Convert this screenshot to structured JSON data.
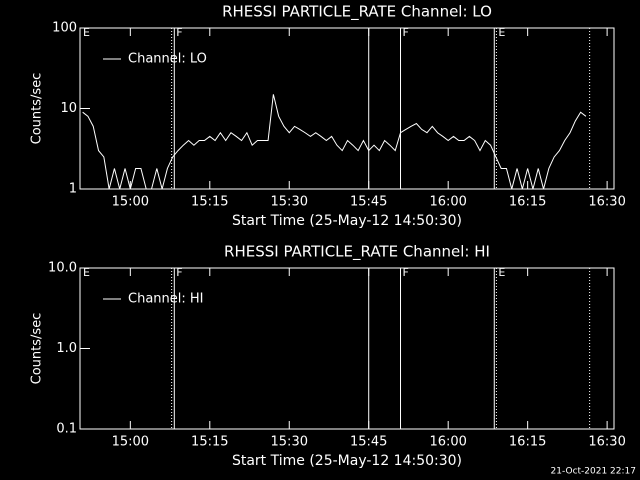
{
  "chart_data": [
    {
      "type": "line",
      "title": "RHESSI PARTICLE_RATE Channel: LO",
      "ylabel": "Counts/sec",
      "xlabel": "Start Time (25-May-12 14:50:30)",
      "log_y": true,
      "ylim": [
        1,
        100
      ],
      "yticks": [
        1,
        10,
        100
      ],
      "xlim": [
        890.5,
        991.3
      ],
      "xticks": [
        {
          "value": 900,
          "label": "15:00"
        },
        {
          "value": 915,
          "label": "15:15"
        },
        {
          "value": 930,
          "label": "15:30"
        },
        {
          "value": 945,
          "label": "15:45"
        },
        {
          "value": 960,
          "label": "16:00"
        },
        {
          "value": 975,
          "label": "16:15"
        },
        {
          "value": 990,
          "label": "16:30"
        }
      ],
      "x": [
        891,
        892,
        893,
        894,
        895,
        896,
        897,
        898,
        899,
        900,
        901,
        902,
        903,
        904,
        905,
        906,
        907,
        908,
        909,
        910,
        911,
        912,
        913,
        914,
        915,
        916,
        917,
        918,
        919,
        920,
        921,
        922,
        923,
        924,
        925,
        926,
        927,
        928,
        929,
        930,
        931,
        932,
        933,
        934,
        935,
        936,
        937,
        938,
        939,
        940,
        941,
        942,
        943,
        944,
        945,
        946,
        947,
        948,
        949,
        950,
        951,
        952,
        953,
        954,
        955,
        956,
        957,
        958,
        959,
        960,
        961,
        962,
        963,
        964,
        965,
        966,
        967,
        968,
        969,
        970,
        971,
        972,
        973,
        974,
        975,
        976,
        977,
        978,
        979,
        980,
        981,
        982,
        983,
        984,
        985,
        986
      ],
      "series": [
        {
          "name": "Channel: LO",
          "color": "#ffffff",
          "values": [
            9,
            8,
            6,
            3,
            2.5,
            1,
            1.8,
            1,
            1.8,
            1,
            1.8,
            1.8,
            1,
            1,
            1.8,
            1,
            1.8,
            2.5,
            3,
            3.5,
            4,
            3.5,
            4,
            4,
            4.5,
            4,
            5,
            4,
            5,
            4.5,
            4,
            5,
            3.5,
            4,
            4,
            4,
            15,
            8,
            6,
            5,
            6,
            5.5,
            5,
            4.5,
            5,
            4.5,
            4,
            4.5,
            3.5,
            3,
            4,
            3.5,
            3,
            4,
            3,
            3.5,
            3,
            4,
            3.5,
            3,
            5,
            5.5,
            6,
            6.5,
            5.5,
            5,
            6,
            5,
            4.5,
            4,
            4.5,
            4,
            4,
            4.5,
            4,
            3,
            4,
            3.5,
            2.5,
            1.8,
            1.8,
            1,
            1.8,
            1,
            1.8,
            1,
            1.8,
            1,
            1.8,
            2.5,
            3,
            4,
            5,
            7,
            9,
            8
          ]
        }
      ],
      "vlines": [
        {
          "x": 907.8,
          "style": "dotted"
        },
        {
          "x": 908.3,
          "style": "solid"
        },
        {
          "x": 945,
          "style": "solid"
        },
        {
          "x": 951,
          "style": "solid"
        },
        {
          "x": 968.7,
          "style": "solid"
        },
        {
          "x": 969.1,
          "style": "dotted"
        },
        {
          "x": 986.7,
          "style": "dotted"
        }
      ],
      "flags": [
        {
          "x": 890.7,
          "label": "E"
        },
        {
          "x": 908.3,
          "label": "F"
        },
        {
          "x": 951,
          "label": "F"
        },
        {
          "x": 969.1,
          "label": "E"
        }
      ]
    },
    {
      "type": "line",
      "title": "RHESSI PARTICLE_RATE Channel: HI",
      "ylabel": "Counts/sec",
      "xlabel": "Start Time (25-May-12 14:50:30)",
      "log_y": true,
      "ylim": [
        0.1,
        10
      ],
      "yticks": [
        0.1,
        {
          "value": 1,
          "label": "1.0"
        },
        {
          "value": 10,
          "label": "10.0"
        }
      ],
      "xlim": [
        890.5,
        991.3
      ],
      "xticks": [
        {
          "value": 900,
          "label": "15:00"
        },
        {
          "value": 915,
          "label": "15:15"
        },
        {
          "value": 930,
          "label": "15:30"
        },
        {
          "value": 945,
          "label": "15:45"
        },
        {
          "value": 960,
          "label": "16:00"
        },
        {
          "value": 975,
          "label": "16:15"
        },
        {
          "value": 990,
          "label": "16:30"
        }
      ],
      "x": [],
      "series": [
        {
          "name": "Channel: HI",
          "color": "#ffffff",
          "values": []
        }
      ],
      "vlines": [
        {
          "x": 907.8,
          "style": "dotted"
        },
        {
          "x": 908.3,
          "style": "solid"
        },
        {
          "x": 945,
          "style": "solid"
        },
        {
          "x": 951,
          "style": "solid"
        },
        {
          "x": 968.7,
          "style": "solid"
        },
        {
          "x": 969.1,
          "style": "dotted"
        },
        {
          "x": 986.7,
          "style": "dotted"
        }
      ],
      "flags": [
        {
          "x": 890.7,
          "label": "E"
        },
        {
          "x": 908.3,
          "label": "F"
        },
        {
          "x": 951,
          "label": "F"
        },
        {
          "x": 969.1,
          "label": "E"
        }
      ]
    }
  ],
  "footer": "21-Oct-2021 22:17"
}
